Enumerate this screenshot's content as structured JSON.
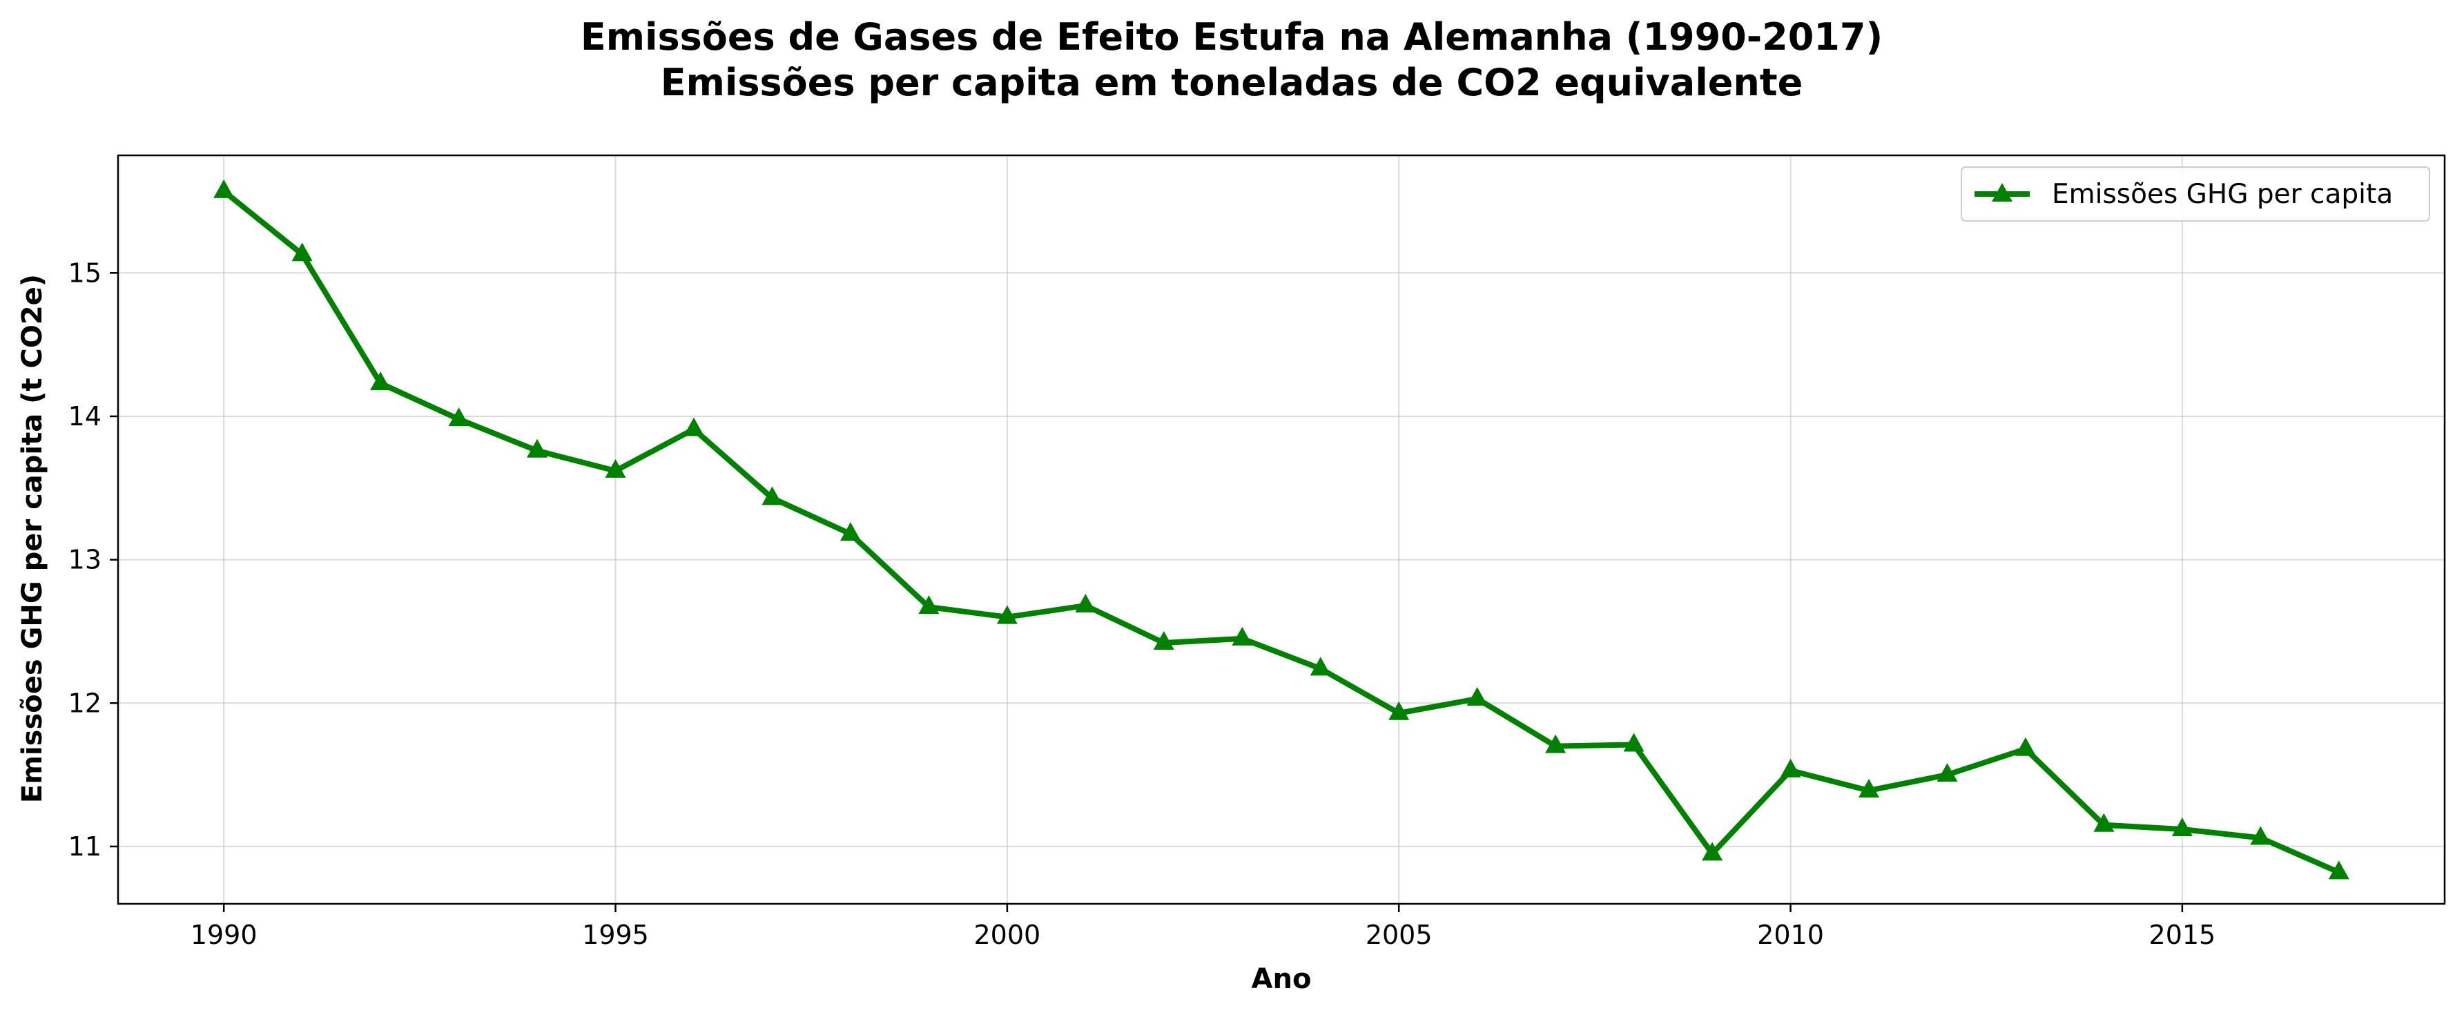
{
  "chart_data": {
    "type": "line",
    "title": "Emissões de Gases de Efeito Estufa na Alemanha (1990-2017)",
    "subtitle": "Emissões per capita em toneladas de CO2 equivalente",
    "xlabel": "Ano",
    "ylabel": "Emissões GHG per capita (t CO2e)",
    "xlim": [
      1988.65,
      2018.35
    ],
    "ylim": [
      10.6,
      15.82
    ],
    "xticks": [
      1990,
      1995,
      2000,
      2005,
      2010,
      2015
    ],
    "yticks": [
      11,
      12,
      13,
      14,
      15
    ],
    "grid": true,
    "legend_position": "top-right",
    "series": [
      {
        "name": "Emissões GHG per capita",
        "color": "#008000",
        "marker": "triangle-up",
        "x": [
          1990,
          1991,
          1992,
          1993,
          1994,
          1995,
          1996,
          1997,
          1998,
          1999,
          2000,
          2001,
          2002,
          2003,
          2004,
          2005,
          2006,
          2007,
          2008,
          2009,
          2010,
          2011,
          2012,
          2013,
          2014,
          2015,
          2016,
          2017
        ],
        "y": [
          15.57,
          15.13,
          14.23,
          13.98,
          13.76,
          13.62,
          13.91,
          13.43,
          13.18,
          12.67,
          12.6,
          12.68,
          12.42,
          12.45,
          12.24,
          11.93,
          12.03,
          11.7,
          11.71,
          10.95,
          11.53,
          11.39,
          11.5,
          11.68,
          11.15,
          11.12,
          11.06,
          10.82
        ]
      }
    ]
  }
}
